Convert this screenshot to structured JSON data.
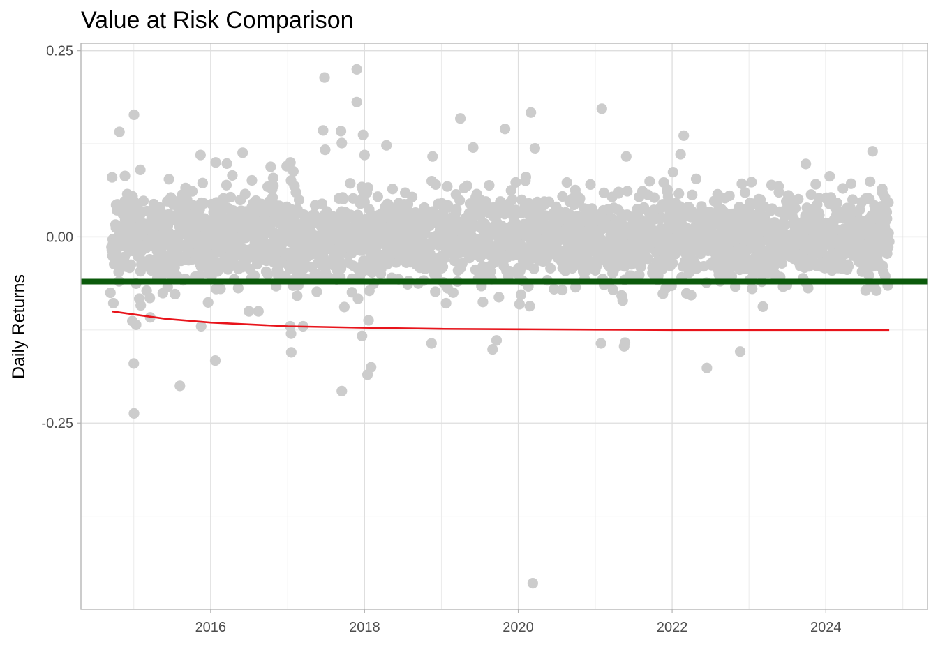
{
  "chart_data": {
    "type": "scatter",
    "title": "Value at Risk Comparison",
    "xlabel": "",
    "ylabel": "Daily Returns",
    "x_range": [
      "2014-04-25",
      "2025-04-28"
    ],
    "ylim": [
      -0.5,
      0.26
    ],
    "x_ticks": [
      {
        "date": "2016-01-01",
        "label": "2016"
      },
      {
        "date": "2018-01-01",
        "label": "2018"
      },
      {
        "date": "2020-01-01",
        "label": "2020"
      },
      {
        "date": "2022-01-01",
        "label": "2022"
      },
      {
        "date": "2024-01-01",
        "label": "2024"
      }
    ],
    "x_minor_ticks": [
      "2015-01-01",
      "2017-01-01",
      "2019-01-01",
      "2021-01-01",
      "2023-01-01",
      "2025-01-01"
    ],
    "y_ticks": [
      {
        "value": 0.25,
        "label": "0.25"
      },
      {
        "value": 0.0,
        "label": "0.00"
      },
      {
        "value": -0.25,
        "label": "-0.25"
      }
    ],
    "y_minor_ticks": [
      0.125,
      -0.125,
      -0.375
    ],
    "grid": true,
    "legend": "none",
    "series": [
      {
        "role": "daily returns",
        "mark": "point",
        "color": "#cccccc",
        "x_start": "2014-09-17",
        "x_end": "2024-10-28",
        "cluster_mean": 0.0,
        "cluster_sd": 0.028,
        "notable_points": [
          {
            "x": "2014-09-20",
            "y": 0.08
          },
          {
            "x": "2014-10-25",
            "y": 0.141
          },
          {
            "x": "2014-09-26",
            "y": -0.089
          },
          {
            "x": "2014-09-12",
            "y": -0.075
          },
          {
            "x": "2015-01-02",
            "y": 0.164
          },
          {
            "x": "2014-12-25",
            "y": -0.113
          },
          {
            "x": "2015-01-12",
            "y": -0.118
          },
          {
            "x": "2015-01-01",
            "y": -0.17
          },
          {
            "x": "2015-01-02",
            "y": -0.237
          },
          {
            "x": "2015-02-01",
            "y": 0.09
          },
          {
            "x": "2015-02-03",
            "y": -0.092
          },
          {
            "x": "2015-03-20",
            "y": -0.108
          },
          {
            "x": "2015-03-18",
            "y": -0.082
          },
          {
            "x": "2015-08-08",
            "y": -0.2
          },
          {
            "x": "2015-11-14",
            "y": 0.11
          },
          {
            "x": "2015-11-17",
            "y": -0.12
          },
          {
            "x": "2015-12-20",
            "y": -0.088
          },
          {
            "x": "2016-01-25",
            "y": 0.1
          },
          {
            "x": "2016-01-23",
            "y": -0.166
          },
          {
            "x": "2016-01-27",
            "y": -0.07
          },
          {
            "x": "2016-06-01",
            "y": 0.113
          },
          {
            "x": "2016-07-01",
            "y": -0.1
          },
          {
            "x": "2016-08-15",
            "y": -0.1
          },
          {
            "x": "2017-01-14",
            "y": 0.1
          },
          {
            "x": "2017-01-28",
            "y": 0.088
          },
          {
            "x": "2017-01-13",
            "y": -0.12
          },
          {
            "x": "2017-01-17",
            "y": -0.13
          },
          {
            "x": "2017-01-18",
            "y": -0.155
          },
          {
            "x": "2017-03-15",
            "y": -0.12
          },
          {
            "x": "2017-06-25",
            "y": 0.214
          },
          {
            "x": "2017-06-18",
            "y": 0.143
          },
          {
            "x": "2017-06-28",
            "y": 0.117
          },
          {
            "x": "2017-09-11",
            "y": 0.142
          },
          {
            "x": "2017-09-15",
            "y": 0.126
          },
          {
            "x": "2017-09-15",
            "y": -0.207
          },
          {
            "x": "2017-11-25",
            "y": 0.225
          },
          {
            "x": "2017-11-25",
            "y": 0.181
          },
          {
            "x": "2017-12-25",
            "y": 0.137
          },
          {
            "x": "2018-01-01",
            "y": 0.11
          },
          {
            "x": "2018-01-15",
            "y": -0.185
          },
          {
            "x": "2018-01-20",
            "y": -0.112
          },
          {
            "x": "2018-02-01",
            "y": -0.175
          },
          {
            "x": "2017-12-20",
            "y": -0.133
          },
          {
            "x": "2018-04-15",
            "y": 0.123
          },
          {
            "x": "2018-11-20",
            "y": 0.108
          },
          {
            "x": "2018-11-15",
            "y": -0.143
          },
          {
            "x": "2019-04-01",
            "y": 0.159
          },
          {
            "x": "2019-06-01",
            "y": 0.12
          },
          {
            "x": "2019-09-01",
            "y": -0.151
          },
          {
            "x": "2019-09-20",
            "y": -0.139
          },
          {
            "x": "2019-10-30",
            "y": 0.145
          },
          {
            "x": "2020-03-01",
            "y": 0.167
          },
          {
            "x": "2020-03-20",
            "y": 0.119
          },
          {
            "x": "2020-02-25",
            "y": -0.093
          },
          {
            "x": "2020-03-10",
            "y": -0.465
          },
          {
            "x": "2021-02-01",
            "y": 0.172
          },
          {
            "x": "2021-01-28",
            "y": -0.143
          },
          {
            "x": "2021-05-18",
            "y": -0.147
          },
          {
            "x": "2021-05-22",
            "y": -0.142
          },
          {
            "x": "2021-05-28",
            "y": 0.108
          },
          {
            "x": "2022-02-25",
            "y": 0.136
          },
          {
            "x": "2022-02-10",
            "y": 0.111
          },
          {
            "x": "2022-06-15",
            "y": -0.176
          },
          {
            "x": "2022-11-20",
            "y": -0.154
          },
          {
            "x": "2023-09-28",
            "y": 0.098
          },
          {
            "x": "2024-08-10",
            "y": 0.115
          },
          {
            "x": "2024-08-28",
            "y": -0.072
          }
        ]
      },
      {
        "role": "flat VaR threshold",
        "mark": "hline",
        "color": "#0b5a0b",
        "y": -0.06
      },
      {
        "role": "rolling VaR",
        "mark": "line",
        "color": "#e8141b",
        "points": [
          {
            "x": "2014-09-20",
            "y": -0.1
          },
          {
            "x": "2015-06-01",
            "y": -0.11
          },
          {
            "x": "2016-01-01",
            "y": -0.115
          },
          {
            "x": "2017-01-01",
            "y": -0.12
          },
          {
            "x": "2018-01-01",
            "y": -0.122
          },
          {
            "x": "2019-01-01",
            "y": -0.1235
          },
          {
            "x": "2020-01-01",
            "y": -0.124
          },
          {
            "x": "2021-01-01",
            "y": -0.1245
          },
          {
            "x": "2022-01-01",
            "y": -0.125
          },
          {
            "x": "2023-01-01",
            "y": -0.125
          },
          {
            "x": "2024-10-28",
            "y": -0.125
          }
        ]
      }
    ]
  }
}
